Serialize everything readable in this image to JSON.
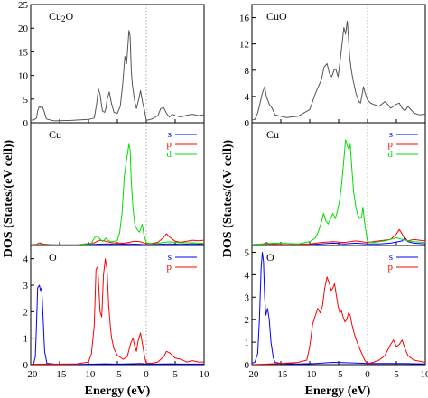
{
  "chart_data": [
    {
      "type": "line",
      "column": "left",
      "row": "top",
      "title": "Cu2O",
      "xlim": [
        -20,
        10
      ],
      "ylim": [
        0,
        25
      ],
      "yticks": [
        0,
        5,
        10,
        15,
        20,
        25
      ],
      "xticks": [],
      "series": [
        {
          "name": "",
          "color": "#555555",
          "x": [
            -21,
            -19.5,
            -19,
            -18.8,
            -18.5,
            -18.3,
            -18,
            -17.7,
            -17.3,
            -16,
            -13,
            -10,
            -9,
            -8.6,
            -8.3,
            -8,
            -7.6,
            -7.2,
            -7,
            -6.8,
            -6.4,
            -6,
            -5.6,
            -5,
            -4.5,
            -4.1,
            -3.7,
            -3.4,
            -3.2,
            -3,
            -2.8,
            -2.6,
            -2.4,
            -2,
            -1.7,
            -1.3,
            -1,
            -0.6,
            -0.3,
            0,
            1,
            2,
            2.5,
            3,
            3.5,
            4,
            4.5,
            5,
            6,
            7,
            8,
            9,
            10
          ],
          "y": [
            0.5,
            0.6,
            1,
            2.5,
            3.5,
            3.2,
            3.4,
            2.5,
            0.8,
            0.4,
            0.5,
            0.7,
            1,
            4,
            7.2,
            6,
            2.5,
            2.2,
            3,
            4.8,
            6.5,
            4,
            2.2,
            2,
            3.5,
            8,
            14,
            12.5,
            16,
            19.5,
            18.3,
            11,
            8,
            4.5,
            3,
            5,
            6.8,
            4,
            2.5,
            0.5,
            0.8,
            1.5,
            3,
            3.2,
            2,
            1.2,
            1.8,
            1.5,
            1.2,
            1.6,
            1.8,
            1.5,
            1.7
          ]
        }
      ]
    },
    {
      "type": "line",
      "column": "left",
      "row": "middle",
      "title": "Cu",
      "xlim": [
        -20,
        10
      ],
      "ylim": [
        0,
        23
      ],
      "yticks": [],
      "xticks": [],
      "legend": [
        "s",
        "p",
        "d"
      ],
      "series": [
        {
          "name": "s",
          "color": "#0000ff",
          "x": [
            -21,
            -19,
            -18,
            -17,
            -15,
            -12,
            -9,
            -7,
            -5,
            -3,
            -1,
            0,
            2,
            4,
            6,
            8,
            10
          ],
          "y": [
            0.1,
            0.15,
            0.2,
            0.15,
            0.1,
            0.1,
            0.2,
            0.3,
            0.2,
            0.3,
            0.2,
            0.1,
            0.2,
            0.3,
            0.2,
            0.3,
            0.2
          ]
        },
        {
          "name": "p",
          "color": "#ff0000",
          "x": [
            -21,
            -19,
            -18.5,
            -18,
            -16,
            -12,
            -9,
            -8,
            -7,
            -6,
            -4,
            -3,
            -2,
            -1,
            0,
            1,
            2,
            3,
            3.5,
            4,
            5,
            6,
            7,
            8,
            9,
            10
          ],
          "y": [
            0.1,
            0.2,
            0.5,
            0.3,
            0.1,
            0.1,
            0.5,
            1,
            0.8,
            0.5,
            0.4,
            0.6,
            0.8,
            0.7,
            0.3,
            0.4,
            0.6,
            1.5,
            2.2,
            1.6,
            0.8,
            0.6,
            0.8,
            1,
            0.9,
            1
          ]
        },
        {
          "name": "d",
          "color": "#00dd00",
          "x": [
            -21,
            -18,
            -16,
            -12,
            -9.5,
            -9,
            -8.5,
            -8,
            -7.6,
            -7.3,
            -7,
            -6.5,
            -6,
            -5.5,
            -5,
            -4.6,
            -4.2,
            -3.8,
            -3.5,
            -3.2,
            -3,
            -2.8,
            -2.6,
            -2.3,
            -2,
            -1.6,
            -1.2,
            -1,
            -0.7,
            -0.4,
            0,
            1,
            2,
            3,
            4,
            5,
            6,
            8,
            10
          ],
          "y": [
            0.1,
            0.15,
            0.1,
            0.1,
            0.4,
            1.4,
            1.8,
            1.2,
            0.8,
            1,
            1.4,
            0.9,
            0.7,
            0.8,
            1,
            2.5,
            6,
            13,
            15.5,
            17.5,
            19,
            18,
            12,
            7,
            4,
            3,
            2.5,
            3,
            4,
            2,
            0.5,
            0.3,
            0.4,
            0.6,
            0.7,
            0.6,
            0.5,
            0.5,
            0.4
          ]
        }
      ]
    },
    {
      "type": "line",
      "column": "left",
      "row": "bottom",
      "title": "O",
      "xlim": [
        -20,
        10
      ],
      "ylim": [
        0,
        4.5
      ],
      "yticks": [
        0,
        1,
        2,
        3,
        4
      ],
      "xticks": [
        -20,
        -15,
        -10,
        -5,
        0,
        5,
        10
      ],
      "legend": [
        "s",
        "p"
      ],
      "series": [
        {
          "name": "s",
          "color": "#0000ff",
          "x": [
            -21,
            -19.5,
            -19.2,
            -19,
            -18.8,
            -18.5,
            -18.3,
            -18.1,
            -17.9,
            -17.6,
            -17.2,
            -16,
            -12,
            -9,
            -7,
            -5,
            -3,
            -1,
            0,
            2,
            4,
            6,
            8,
            10
          ],
          "y": [
            0,
            0.02,
            0.3,
            1.5,
            2.9,
            3,
            2.8,
            2.9,
            2,
            0.5,
            0.05,
            0.02,
            0.01,
            0.02,
            0.03,
            0.02,
            0.03,
            0.04,
            0.02,
            0.02,
            0.03,
            0.02,
            0.02,
            0.02
          ]
        },
        {
          "name": "p",
          "color": "#ff0000",
          "x": [
            -21,
            -18,
            -15,
            -12,
            -10,
            -9.5,
            -9,
            -8.7,
            -8.4,
            -8,
            -7.7,
            -7.4,
            -7.1,
            -6.8,
            -6.5,
            -6.2,
            -6,
            -5.6,
            -5,
            -4,
            -3.3,
            -2.7,
            -2.3,
            -2,
            -1.7,
            -1.4,
            -1,
            -0.6,
            -0.3,
            0,
            1,
            2,
            3,
            3.5,
            4,
            4.5,
            5,
            6,
            7,
            8,
            9,
            10
          ],
          "y": [
            0.01,
            0.02,
            0.02,
            0.03,
            0.1,
            0.4,
            1.5,
            3.6,
            3.7,
            2,
            1.8,
            3.4,
            4,
            3.6,
            2.2,
            1.4,
            1,
            0.6,
            0.35,
            0.2,
            0.3,
            0.8,
            1,
            0.7,
            0.5,
            0.9,
            1.2,
            0.7,
            0.3,
            0.05,
            0.05,
            0.1,
            0.3,
            0.5,
            0.45,
            0.35,
            0.25,
            0.2,
            0.1,
            0.15,
            0.1,
            0.1
          ]
        }
      ]
    },
    {
      "type": "line",
      "column": "right",
      "row": "top",
      "title": "CuO",
      "xlim": [
        -20,
        10
      ],
      "ylim": [
        0,
        18
      ],
      "yticks": [
        0,
        4,
        8,
        12,
        16
      ],
      "xticks": [],
      "series": [
        {
          "name": "",
          "color": "#555555",
          "x": [
            -21,
            -19.5,
            -19,
            -18.6,
            -18.2,
            -17.8,
            -17.5,
            -17,
            -16.5,
            -16,
            -14,
            -12,
            -10,
            -9,
            -8,
            -7.5,
            -7,
            -6.6,
            -6.2,
            -5.8,
            -5.5,
            -5.1,
            -4.8,
            -4.4,
            -4.1,
            -3.8,
            -3.5,
            -3.3,
            -3.1,
            -2.8,
            -2.5,
            -2,
            -1.5,
            -1.2,
            -1,
            -0.7,
            -0.4,
            0,
            0.5,
            1,
            2,
            3,
            3.5,
            4,
            5,
            5.5,
            6,
            6.5,
            7,
            8,
            9,
            10
          ],
          "y": [
            0.3,
            0.5,
            1.5,
            3,
            4.5,
            5.5,
            4,
            2.8,
            2.2,
            1.2,
            0.8,
            1,
            2,
            4.5,
            6.5,
            8.5,
            9,
            7.5,
            7,
            8,
            8.2,
            7,
            9,
            12,
            14.5,
            13.5,
            15.5,
            13,
            10,
            8,
            6.5,
            4.5,
            3.2,
            3,
            4,
            5.5,
            4.5,
            3.5,
            3,
            2.8,
            2.5,
            3.2,
            2.8,
            2.2,
            2.8,
            3,
            2.2,
            1.8,
            2.5,
            1.5,
            1.2,
            1.3
          ]
        }
      ]
    },
    {
      "type": "line",
      "column": "right",
      "row": "middle",
      "title": "Cu",
      "xlim": [
        -20,
        10
      ],
      "ylim": [
        0,
        16
      ],
      "yticks": [],
      "xticks": [],
      "legend": [
        "s",
        "p",
        "d"
      ],
      "series": [
        {
          "name": "s",
          "color": "#0000ff",
          "x": [
            -21,
            -18,
            -16,
            -12,
            -10,
            -8,
            -6,
            -4,
            -2,
            0,
            2,
            4,
            6,
            6.5,
            7,
            8,
            10
          ],
          "y": [
            0.05,
            0.1,
            0.1,
            0.05,
            0.1,
            0.2,
            0.3,
            0.2,
            0.3,
            0.2,
            0.2,
            0.3,
            0.6,
            1,
            0.5,
            0.3,
            0.2
          ]
        },
        {
          "name": "p",
          "color": "#ff0000",
          "x": [
            -21,
            -18,
            -17.5,
            -17,
            -14,
            -10,
            -8,
            -6,
            -4,
            -2,
            0,
            2,
            4,
            5,
            5.5,
            6,
            6.5,
            7,
            8,
            9,
            10
          ],
          "y": [
            0.05,
            0.2,
            0.4,
            0.2,
            0.1,
            0.2,
            0.4,
            0.5,
            0.4,
            0.6,
            0.4,
            0.6,
            0.8,
            1.5,
            2.1,
            1.5,
            0.8,
            0.6,
            0.8,
            0.7,
            0.6
          ]
        },
        {
          "name": "d",
          "color": "#00dd00",
          "x": [
            -21,
            -18,
            -16,
            -12,
            -10,
            -9,
            -8.5,
            -8,
            -7.6,
            -7.2,
            -6.8,
            -6.4,
            -6,
            -5.6,
            -5.2,
            -4.8,
            -4.4,
            -4,
            -3.8,
            -3.5,
            -3.2,
            -3,
            -2.7,
            -2.4,
            -2,
            -1.7,
            -1.3,
            -1,
            -0.8,
            -0.5,
            -0.2,
            0,
            1,
            2,
            3,
            4,
            5,
            6,
            7,
            8,
            10
          ],
          "y": [
            0.1,
            0.2,
            0.3,
            0.2,
            0.5,
            1,
            1.8,
            3,
            4.2,
            3.2,
            2.8,
            3.5,
            4.2,
            3.5,
            4.5,
            6,
            8.5,
            12,
            13.8,
            13,
            12.5,
            13.2,
            10,
            7,
            5,
            4,
            3.5,
            3.8,
            5,
            3,
            1.5,
            0.5,
            0.4,
            0.5,
            0.6,
            0.8,
            1,
            0.8,
            0.6,
            0.5,
            0.4
          ]
        }
      ]
    },
    {
      "type": "line",
      "column": "right",
      "row": "bottom",
      "title": "O",
      "xlim": [
        -20,
        10
      ],
      "ylim": [
        0,
        5.3
      ],
      "yticks": [
        0,
        1,
        2,
        3,
        4,
        5
      ],
      "xticks": [
        -20,
        -15,
        -10,
        -5,
        0,
        5,
        10
      ],
      "legend": [
        "s",
        "p"
      ],
      "series": [
        {
          "name": "s",
          "color": "#0000ff",
          "x": [
            -21,
            -19.5,
            -19,
            -18.7,
            -18.4,
            -18.2,
            -18,
            -17.8,
            -17.6,
            -17.3,
            -17,
            -16.7,
            -16.3,
            -16,
            -15,
            -12,
            -9,
            -6,
            -3,
            0,
            3,
            6,
            8,
            10
          ],
          "y": [
            0,
            0.1,
            0.5,
            2,
            4.3,
            5,
            4.6,
            3,
            2.2,
            2.5,
            2,
            1,
            0.3,
            0.1,
            0.05,
            0.03,
            0.05,
            0.1,
            0.08,
            0.05,
            0.05,
            0.05,
            0.04,
            0.03
          ]
        },
        {
          "name": "p",
          "color": "#ff0000",
          "x": [
            -21,
            -18,
            -15,
            -12,
            -10.5,
            -10,
            -9.5,
            -9,
            -8.6,
            -8.2,
            -7.8,
            -7.4,
            -7,
            -6.6,
            -6.3,
            -6,
            -5.7,
            -5.4,
            -5.1,
            -4.8,
            -4.5,
            -4.2,
            -3.9,
            -3.6,
            -3.3,
            -3,
            -2.7,
            -2.4,
            -2.1,
            -1.8,
            -1.5,
            -1,
            -0.5,
            0,
            1,
            2,
            3,
            4,
            4.5,
            5,
            5.5,
            6,
            6.5,
            7,
            8,
            9,
            10
          ],
          "y": [
            0,
            0.02,
            0.05,
            0.1,
            0.2,
            0.8,
            1.8,
            2.2,
            2.5,
            2.3,
            2.6,
            3.4,
            3.9,
            3.6,
            3.3,
            3.4,
            3.6,
            3.1,
            2.6,
            2.3,
            2.4,
            2.1,
            1.9,
            2,
            2.3,
            2.2,
            1.8,
            1.5,
            1.2,
            1,
            0.8,
            0.5,
            0.2,
            0.05,
            0.1,
            0.2,
            0.4,
            0.9,
            1.1,
            0.8,
            0.9,
            1.1,
            0.7,
            0.4,
            0.2,
            0.15,
            0.1
          ]
        }
      ]
    }
  ],
  "labels": {
    "ylabel": "DOS (States/(eV cell))",
    "xlabel": "Energy (eV)"
  }
}
